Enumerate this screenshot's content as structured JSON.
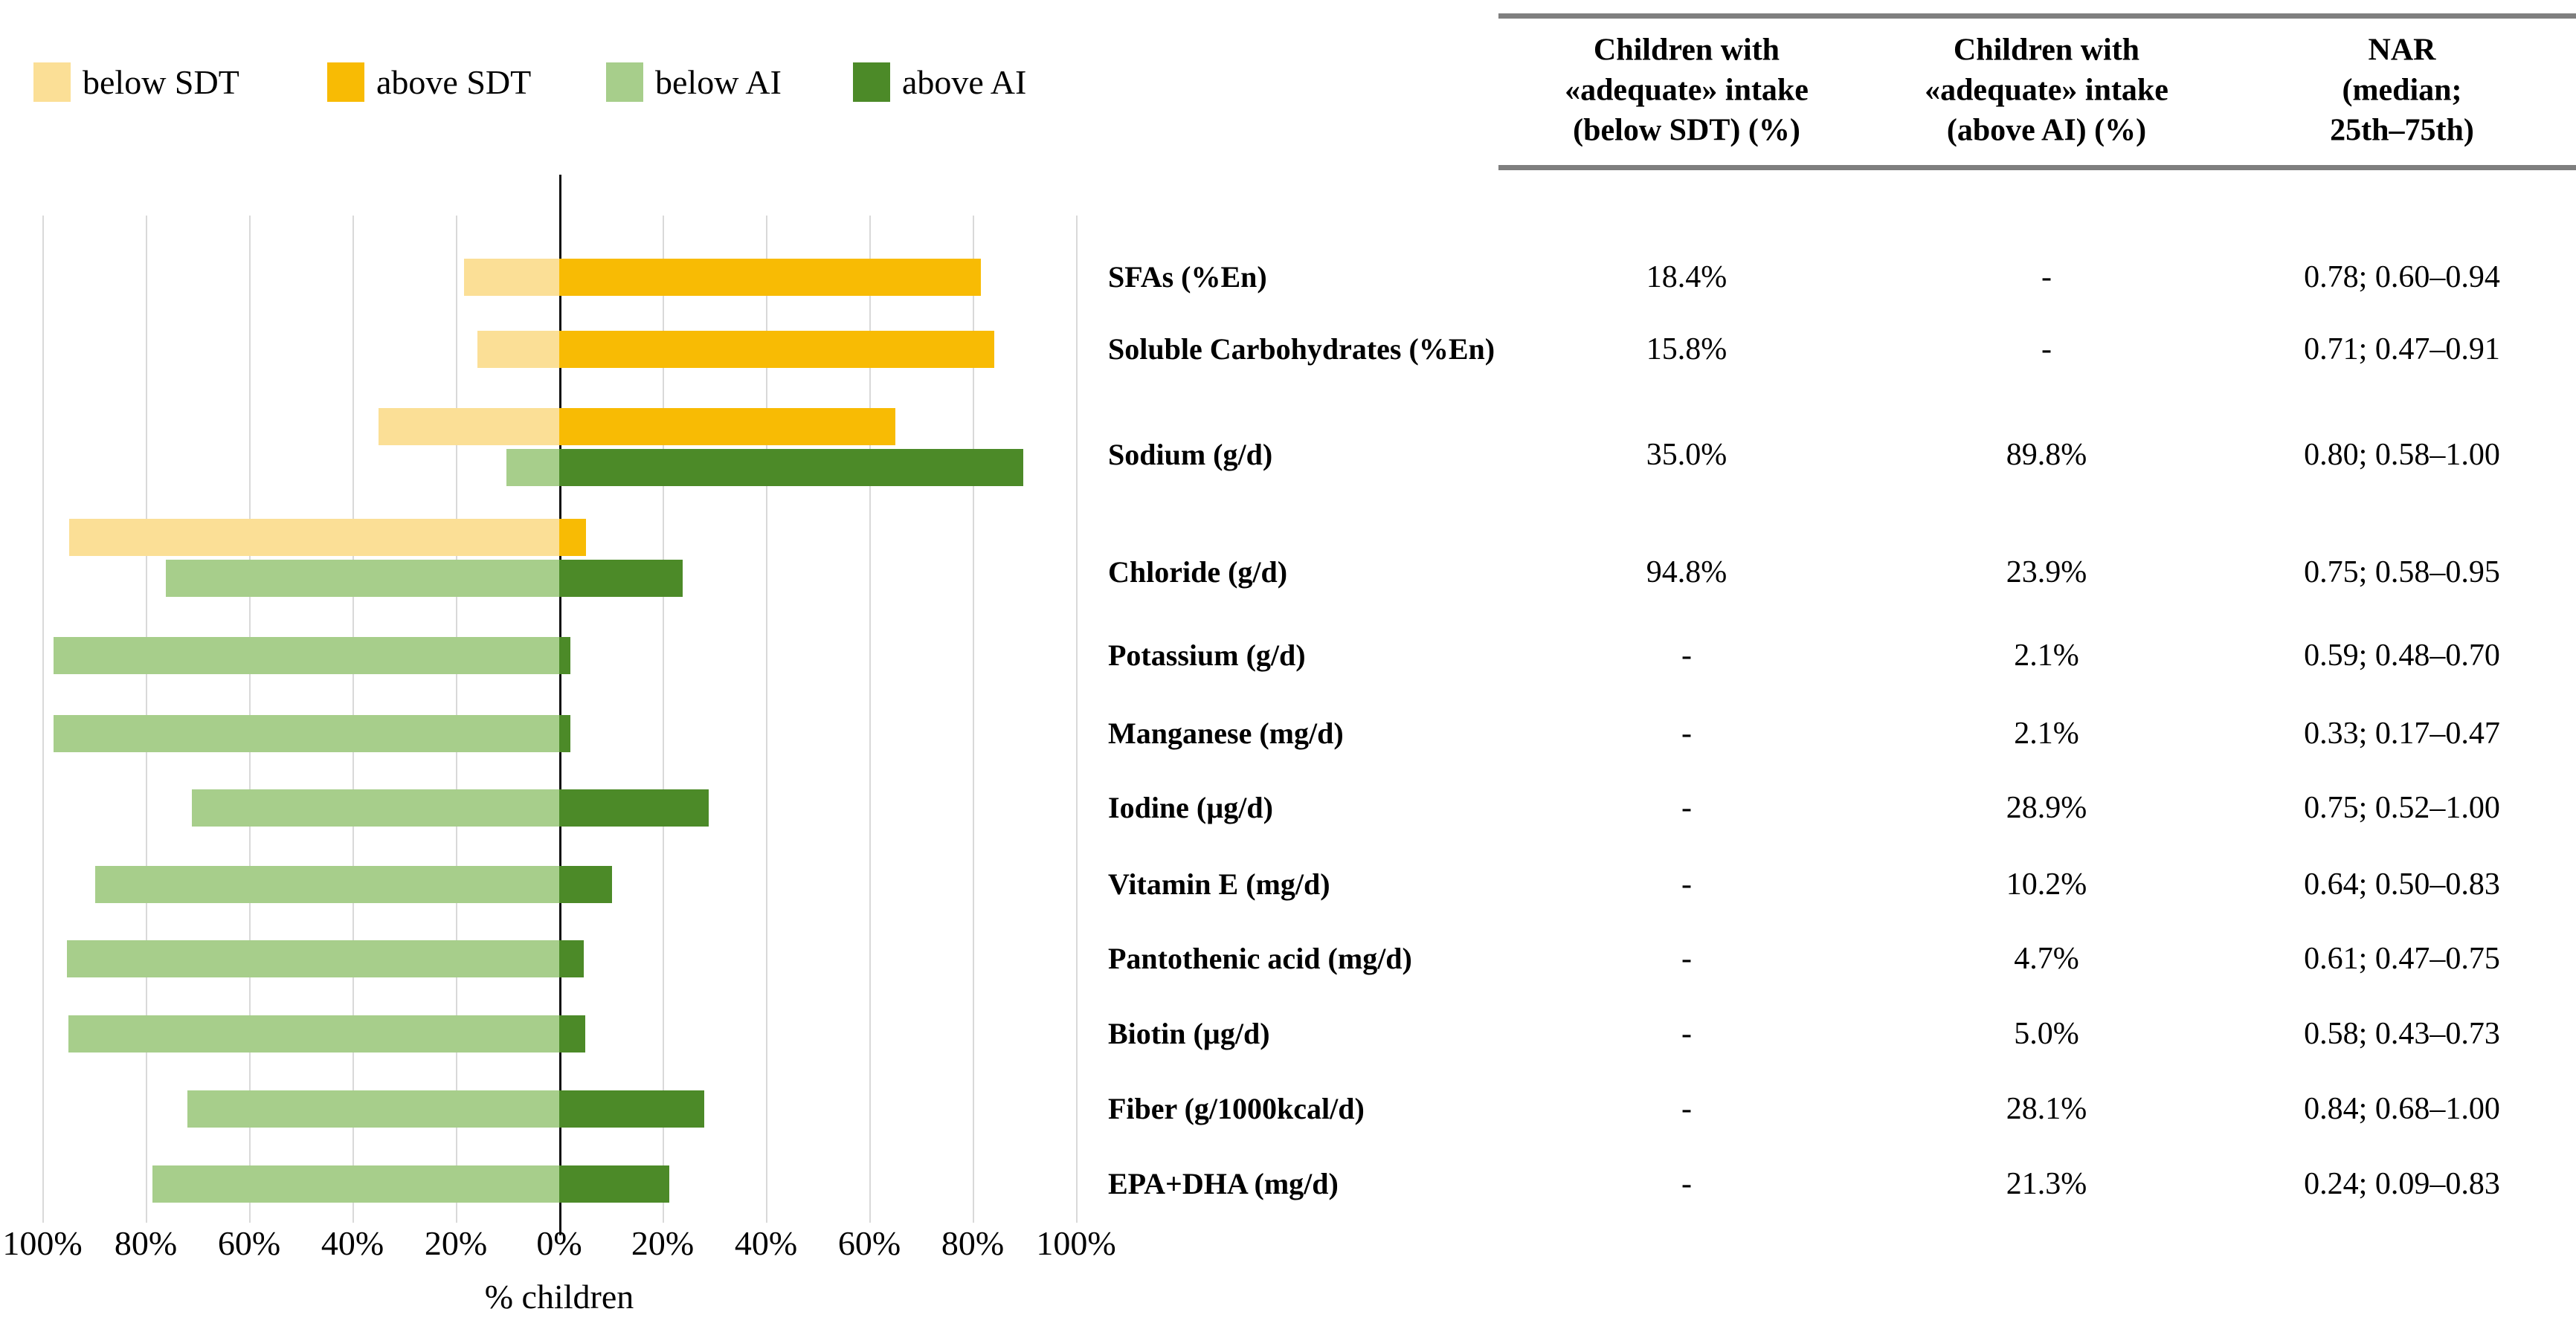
{
  "figure": {
    "legend": [
      {
        "label": "below SDT",
        "color": "#FBDF96"
      },
      {
        "label": "above SDT",
        "color": "#F8BB04"
      },
      {
        "label": "below AI",
        "color": "#A7CE8B"
      },
      {
        "label": "above AI",
        "color": "#4C8A28"
      }
    ],
    "colors": {
      "below_SDT": "#FBDF96",
      "above_SDT": "#F8BB04",
      "below_AI": "#A7CE8B",
      "above_AI": "#4C8A28",
      "gridline": "#d9d9d9",
      "zero_axis": "#0d0d0d",
      "table_rule": "#7f7f7f"
    }
  },
  "chart_data": {
    "type": "bar",
    "orientation": "horizontal_diverging",
    "xlabel": "% children",
    "x_tick_labels": [
      "100%",
      "80%",
      "60%",
      "40%",
      "20%",
      "0%",
      "20%",
      "40%",
      "60%",
      "80%",
      "100%"
    ],
    "x_axis_range_pct": [
      -100,
      100
    ],
    "grid": true,
    "legend_position": "top-left",
    "rows": [
      {
        "label": "SFAs (%En)",
        "pairs": [
          {
            "standard": "SDT",
            "below_pct": 18.4,
            "above_pct": 81.6
          }
        ]
      },
      {
        "label": "Soluble Carbohydrates (%En)",
        "pairs": [
          {
            "standard": "SDT",
            "below_pct": 15.8,
            "above_pct": 84.2
          }
        ]
      },
      {
        "label": "Sodium (g/d)",
        "pairs": [
          {
            "standard": "SDT",
            "below_pct": 35.0,
            "above_pct": 65.0
          },
          {
            "standard": "AI",
            "below_pct": 10.2,
            "above_pct": 89.8
          }
        ]
      },
      {
        "label": "Chloride (g/d)",
        "pairs": [
          {
            "standard": "SDT",
            "below_pct": 94.8,
            "above_pct": 5.2
          },
          {
            "standard": "AI",
            "below_pct": 76.1,
            "above_pct": 23.9
          }
        ]
      },
      {
        "label": "Potassium (g/d)",
        "pairs": [
          {
            "standard": "AI",
            "below_pct": 97.9,
            "above_pct": 2.1
          }
        ]
      },
      {
        "label": "Manganese (mg/d)",
        "pairs": [
          {
            "standard": "AI",
            "below_pct": 97.9,
            "above_pct": 2.1
          }
        ]
      },
      {
        "label": "Iodine (µg/d)",
        "pairs": [
          {
            "standard": "AI",
            "below_pct": 71.1,
            "above_pct": 28.9
          }
        ]
      },
      {
        "label": "Vitamin E (mg/d)",
        "pairs": [
          {
            "standard": "AI",
            "below_pct": 89.8,
            "above_pct": 10.2
          }
        ]
      },
      {
        "label": "Pantothenic acid (mg/d)",
        "pairs": [
          {
            "standard": "AI",
            "below_pct": 95.3,
            "above_pct": 4.7
          }
        ]
      },
      {
        "label": "Biotin (µg/d)",
        "pairs": [
          {
            "standard": "AI",
            "below_pct": 95.0,
            "above_pct": 5.0
          }
        ]
      },
      {
        "label": "Fiber (g/1000kcal/d)",
        "pairs": [
          {
            "standard": "AI",
            "below_pct": 71.9,
            "above_pct": 28.1
          }
        ]
      },
      {
        "label": "EPA+DHA (mg/d)",
        "pairs": [
          {
            "standard": "AI",
            "below_pct": 78.7,
            "above_pct": 21.3
          }
        ]
      }
    ]
  },
  "table": {
    "columns": [
      "Children with\n«adequate» intake\n(below SDT) (%)",
      "Children with\n«adequate» intake\n(above AI) (%)",
      "NAR\n(median; 25th–75th)"
    ],
    "rows": [
      {
        "label": "SFAs (%En)",
        "below_sdt": "18.4%",
        "above_ai": "-",
        "nar": "0.78; 0.60–0.94"
      },
      {
        "label": "Soluble Carbohydrates (%En)",
        "below_sdt": "15.8%",
        "above_ai": "-",
        "nar": "0.71; 0.47–0.91"
      },
      {
        "label": "Sodium (g/d)",
        "below_sdt": "35.0%",
        "above_ai": "89.8%",
        "nar": "0.80; 0.58–1.00"
      },
      {
        "label": "Chloride (g/d)",
        "below_sdt": "94.8%",
        "above_ai": "23.9%",
        "nar": "0.75; 0.58–0.95"
      },
      {
        "label": "Potassium (g/d)",
        "below_sdt": "-",
        "above_ai": "2.1%",
        "nar": "0.59; 0.48–0.70"
      },
      {
        "label": "Manganese (mg/d)",
        "below_sdt": "-",
        "above_ai": "2.1%",
        "nar": "0.33; 0.17–0.47"
      },
      {
        "label": "Iodine (µg/d)",
        "below_sdt": "-",
        "above_ai": "28.9%",
        "nar": "0.75; 0.52–1.00"
      },
      {
        "label": "Vitamin E (mg/d)",
        "below_sdt": "-",
        "above_ai": "10.2%",
        "nar": "0.64; 0.50–0.83"
      },
      {
        "label": "Pantothenic acid (mg/d)",
        "below_sdt": "-",
        "above_ai": "4.7%",
        "nar": "0.61; 0.47–0.75"
      },
      {
        "label": "Biotin (µg/d)",
        "below_sdt": "-",
        "above_ai": "5.0%",
        "nar": "0.58; 0.43–0.73"
      },
      {
        "label": "Fiber (g/1000kcal/d)",
        "below_sdt": "-",
        "above_ai": "28.1%",
        "nar": "0.84; 0.68–1.00"
      },
      {
        "label": "EPA+DHA (mg/d)",
        "below_sdt": "-",
        "above_ai": "21.3%",
        "nar": "0.24; 0.09–0.83"
      }
    ]
  }
}
